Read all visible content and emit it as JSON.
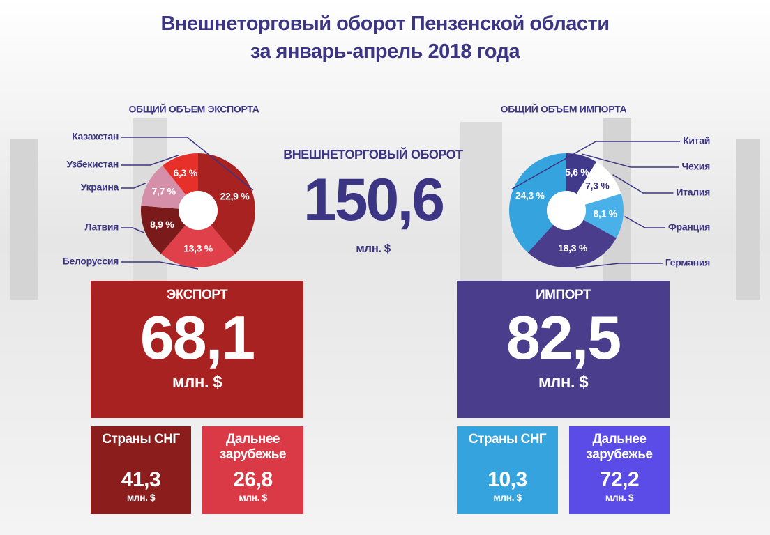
{
  "title": [
    "Внешнеторговый оборот Пензенской области",
    "за январь-апрель  2018 года"
  ],
  "center": {
    "title": "ВНЕШНЕТОРГОВЫЙ ОБОРОТ",
    "value": "150,6",
    "unit": "млн. $"
  },
  "export": {
    "title": "ЭКСПОРТ",
    "value": "68,1",
    "unit": "млн. $",
    "cis": {
      "label": "Страны СНГ",
      "value": "41,3",
      "unit": "млн. $"
    },
    "far": {
      "label": "Дальнее зарубежье",
      "value": "26,8",
      "unit": "млн. $"
    }
  },
  "import": {
    "title": "ИМПОРТ",
    "value": "82,5",
    "unit": "млн. $",
    "cis": {
      "label": "Страны СНГ",
      "value": "10,3",
      "unit": "млн. $"
    },
    "far": {
      "label": "Дальнее зарубежье",
      "value": "72,2",
      "unit": "млн. $"
    }
  },
  "chart_data": [
    {
      "type": "pie",
      "title": "ОБЩИЙ ОБЪЕМ ЭКСПОРТА",
      "categories": [
        "Казахстан",
        "Белоруссия",
        "Латвия",
        "Украина",
        "Узбекистан"
      ],
      "values": [
        22.9,
        13.3,
        8.9,
        7.7,
        6.3
      ],
      "value_labels": [
        "22,9 %",
        "13,3 %",
        "8,9 %",
        "7,7 %",
        "6,3 %"
      ],
      "colors": [
        "#a82222",
        "#e0404a",
        "#7a1a1a",
        "#d58fa8",
        "#e8302a"
      ]
    },
    {
      "type": "pie",
      "title": "ОБЩИЙ ОБЪЕМ ИМПОРТА",
      "categories": [
        "Чехия",
        "Италия",
        "Франция",
        "Германия",
        "Китай"
      ],
      "values": [
        5.6,
        7.3,
        8.1,
        18.3,
        24.3
      ],
      "value_labels": [
        "5,6 %",
        "7,3 %",
        "8,1 %",
        "18,3 %",
        "24,3 %"
      ],
      "colors": [
        "#3f3a8a",
        "#ffffff",
        "#4ab0e8",
        "#4a3d8c",
        "#35a3dd"
      ]
    }
  ]
}
